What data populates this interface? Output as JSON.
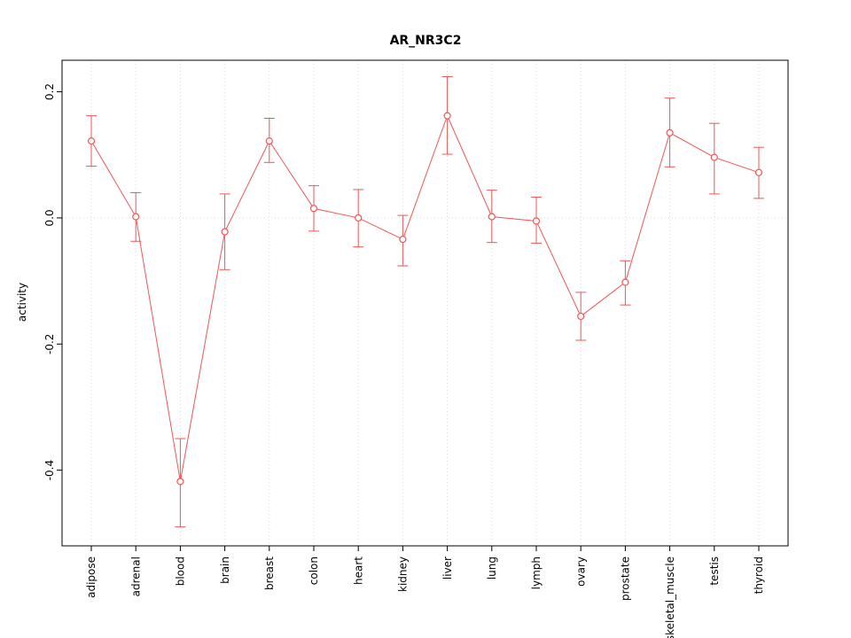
{
  "title": "AR_NR3C2",
  "axes": {
    "ylabel": "activity",
    "xlabel": ""
  },
  "chart_data": {
    "type": "line",
    "title": "AR_NR3C2",
    "ylabel": "activity",
    "xlabel": "",
    "categories": [
      "adipose",
      "adrenal",
      "blood",
      "brain",
      "breast",
      "colon",
      "heart",
      "kidney",
      "liver",
      "lung",
      "lymph",
      "ovary",
      "prostate",
      "skeletal_muscle",
      "testis",
      "thyroid"
    ],
    "values": [
      0.122,
      0.002,
      -0.418,
      -0.022,
      0.122,
      0.015,
      0.0,
      -0.034,
      0.162,
      0.002,
      -0.005,
      -0.156,
      -0.102,
      0.135,
      0.096,
      0.072
    ],
    "error_low": [
      0.082,
      -0.037,
      -0.49,
      -0.082,
      0.088,
      -0.021,
      -0.046,
      -0.076,
      0.101,
      -0.039,
      -0.04,
      -0.194,
      -0.138,
      0.081,
      0.038,
      0.031
    ],
    "error_high": [
      0.162,
      0.04,
      -0.35,
      0.038,
      0.158,
      0.051,
      0.045,
      0.004,
      0.224,
      0.044,
      0.033,
      -0.118,
      -0.068,
      0.19,
      0.15,
      0.112
    ],
    "ylim": [
      -0.52,
      0.25
    ],
    "yticks": [
      0.2,
      0.0,
      -0.2,
      -0.4
    ],
    "ytick_labels": [
      "0.2",
      "0.0",
      "-0.2",
      "-0.4"
    ],
    "grid": {
      "vertical": "dotted-per-category",
      "horizontal_at": [
        0.0
      ],
      "color": "#d8d8d8"
    },
    "legend": "none",
    "marker": "open-circle",
    "line_color": "#f15555",
    "axis_color": "#000000",
    "background_color": "#ffffff"
  }
}
